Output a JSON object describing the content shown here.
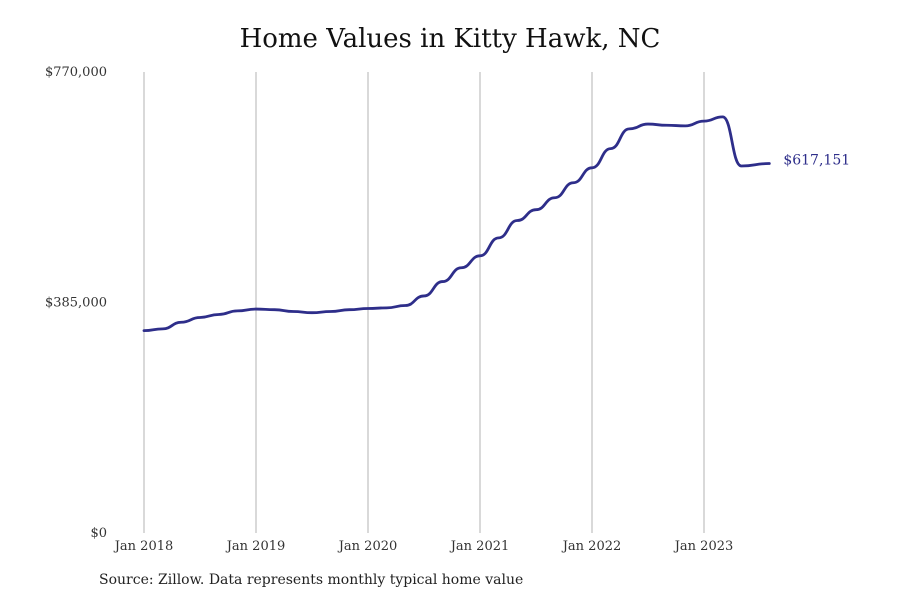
{
  "chart_data": {
    "type": "line",
    "title": "Home Values in Kitty Hawk, NC",
    "xlabel": "",
    "ylabel": "",
    "x_tick_labels": [
      "Jan 2018",
      "Jan 2019",
      "Jan 2020",
      "Jan 2021",
      "Jan 2022",
      "Jan 2023"
    ],
    "y_tick_labels": [
      "$0",
      "$385,000",
      "$770,000"
    ],
    "ylim": [
      0,
      770000
    ],
    "xlim": [
      "2018-01",
      "2023-08"
    ],
    "grid": "vertical",
    "series": [
      {
        "color": "#2e2e8a",
        "end_label": "$617,151",
        "x": [
          "2018-01",
          "2018-03",
          "2018-05",
          "2018-07",
          "2018-09",
          "2018-11",
          "2019-01",
          "2019-03",
          "2019-05",
          "2019-07",
          "2019-09",
          "2019-11",
          "2020-01",
          "2020-03",
          "2020-05",
          "2020-07",
          "2020-09",
          "2020-11",
          "2021-01",
          "2021-03",
          "2021-05",
          "2021-07",
          "2021-09",
          "2021-11",
          "2022-01",
          "2022-03",
          "2022-05",
          "2022-07",
          "2022-09",
          "2022-11",
          "2023-01",
          "2023-03",
          "2023-05",
          "2023-08"
        ],
        "values": [
          338000,
          341000,
          352000,
          360000,
          365000,
          371000,
          374000,
          373000,
          370000,
          368000,
          370000,
          373000,
          375000,
          376000,
          380000,
          396000,
          420000,
          443000,
          463000,
          493000,
          522000,
          540000,
          560000,
          585000,
          610000,
          642000,
          675000,
          683000,
          681000,
          680000,
          688000,
          695000,
          605000,
          617151
        ]
      }
    ]
  },
  "source": "Source: Zillow. Data represents monthly typical home value"
}
